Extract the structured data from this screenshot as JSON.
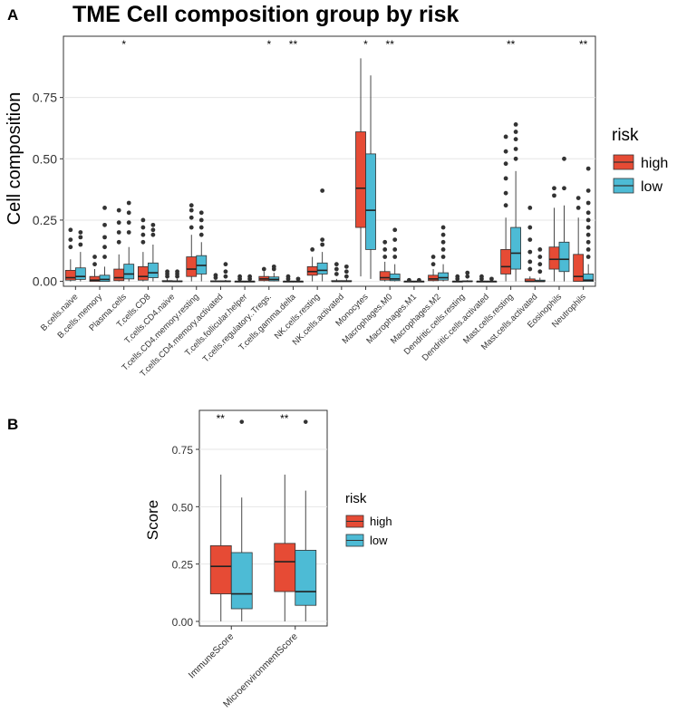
{
  "chart_data": [
    {
      "panel": "A",
      "type": "box",
      "title": "TME Cell composition group by risk",
      "xlabel": "",
      "ylabel": "Cell composition",
      "ylim": [
        -0.02,
        1.0
      ],
      "yticks": [
        0.0,
        0.25,
        0.5,
        0.75
      ],
      "ytick_labels": [
        "0.00",
        "0.25",
        "0.50",
        "0.75"
      ],
      "legend": {
        "title": "risk",
        "position": "right",
        "entries": [
          {
            "label": "high",
            "color": "#E64B35"
          },
          {
            "label": "low",
            "color": "#4DBBD5"
          }
        ]
      },
      "groups": [
        {
          "name": "B.cells.naive",
          "sig": "",
          "high": {
            "whislo": 0,
            "q1": 0.005,
            "med": 0.015,
            "q3": 0.045,
            "whishi": 0.09,
            "fliers": [
              0.14,
              0.17,
              0.21
            ]
          },
          "low": {
            "whislo": 0,
            "q1": 0.008,
            "med": 0.02,
            "q3": 0.055,
            "whishi": 0.12,
            "fliers": [
              0.15,
              0.18,
              0.2
            ]
          }
        },
        {
          "name": "B.cells.memory",
          "sig": "",
          "high": {
            "whislo": 0,
            "q1": 0.0,
            "med": 0.005,
            "q3": 0.02,
            "whishi": 0.05,
            "fliers": [
              0.07,
              0.1
            ]
          },
          "low": {
            "whislo": 0,
            "q1": 0.0,
            "med": 0.008,
            "q3": 0.025,
            "whishi": 0.06,
            "fliers": [
              0.1,
              0.14,
              0.18,
              0.23,
              0.3
            ]
          }
        },
        {
          "name": "Plasma.cells",
          "sig": "*",
          "high": {
            "whislo": 0,
            "q1": 0.003,
            "med": 0.015,
            "q3": 0.05,
            "whishi": 0.11,
            "fliers": [
              0.16,
              0.2,
              0.24,
              0.29
            ]
          },
          "low": {
            "whislo": 0,
            "q1": 0.01,
            "med": 0.03,
            "q3": 0.07,
            "whishi": 0.14,
            "fliers": [
              0.2,
              0.24,
              0.28,
              0.32
            ]
          }
        },
        {
          "name": "T.cells.CD8",
          "sig": "",
          "high": {
            "whislo": 0,
            "q1": 0.005,
            "med": 0.02,
            "q3": 0.06,
            "whishi": 0.12,
            "fliers": [
              0.16,
              0.19,
              0.22,
              0.25
            ]
          },
          "low": {
            "whislo": 0,
            "q1": 0.015,
            "med": 0.035,
            "q3": 0.075,
            "whishi": 0.15,
            "fliers": [
              0.19,
              0.21,
              0.23
            ]
          }
        },
        {
          "name": "T.cells.CD4.naive",
          "sig": "",
          "high": {
            "whislo": 0,
            "q1": 0.0,
            "med": 0.0,
            "q3": 0.003,
            "whishi": 0.01,
            "fliers": [
              0.02,
              0.03,
              0.04
            ]
          },
          "low": {
            "whislo": 0,
            "q1": 0.0,
            "med": 0.0,
            "q3": 0.002,
            "whishi": 0.01,
            "fliers": [
              0.02,
              0.03,
              0.04
            ]
          }
        },
        {
          "name": "T.cells.CD4.memory.resting",
          "sig": "",
          "high": {
            "whislo": 0,
            "q1": 0.02,
            "med": 0.05,
            "q3": 0.1,
            "whishi": 0.19,
            "fliers": [
              0.22,
              0.26,
              0.29,
              0.31
            ]
          },
          "low": {
            "whislo": 0,
            "q1": 0.03,
            "med": 0.065,
            "q3": 0.105,
            "whishi": 0.16,
            "fliers": [
              0.19,
              0.22,
              0.25,
              0.28
            ]
          }
        },
        {
          "name": "T.cells.CD4.memory.activated",
          "sig": "",
          "high": {
            "whislo": 0,
            "q1": 0.0,
            "med": 0.0,
            "q3": 0.002,
            "whishi": 0.006,
            "fliers": [
              0.015,
              0.025
            ]
          },
          "low": {
            "whislo": 0,
            "q1": 0.0,
            "med": 0.0,
            "q3": 0.002,
            "whishi": 0.006,
            "fliers": [
              0.02,
              0.04,
              0.07
            ]
          }
        },
        {
          "name": "T.cells.follicular.helper",
          "sig": "",
          "high": {
            "whislo": 0,
            "q1": 0.0,
            "med": 0.0,
            "q3": 0.0,
            "whishi": 0.003,
            "fliers": [
              0.01,
              0.02
            ]
          },
          "low": {
            "whislo": 0,
            "q1": 0.0,
            "med": 0.0,
            "q3": 0.0,
            "whishi": 0.003,
            "fliers": [
              0.01,
              0.02
            ]
          }
        },
        {
          "name": "T.cells.regulatory..Tregs.",
          "sig": "*",
          "high": {
            "whislo": 0,
            "q1": 0.003,
            "med": 0.01,
            "q3": 0.02,
            "whishi": 0.04,
            "fliers": [
              0.05
            ]
          },
          "low": {
            "whislo": 0,
            "q1": 0.002,
            "med": 0.008,
            "q3": 0.018,
            "whishi": 0.035,
            "fliers": [
              0.05,
              0.06
            ]
          }
        },
        {
          "name": "T.cells.gamma.delta",
          "sig": "**",
          "high": {
            "whislo": 0,
            "q1": 0.0,
            "med": 0.0,
            "q3": 0.0,
            "whishi": 0.003,
            "fliers": [
              0.01,
              0.02
            ]
          },
          "low": {
            "whislo": 0,
            "q1": 0.0,
            "med": 0.0,
            "q3": 0.0,
            "whishi": 0.003,
            "fliers": [
              0.01
            ]
          }
        },
        {
          "name": "NK.cells.resting",
          "sig": "",
          "high": {
            "whislo": 0,
            "q1": 0.025,
            "med": 0.04,
            "q3": 0.06,
            "whishi": 0.1,
            "fliers": [
              0.13
            ]
          },
          "low": {
            "whislo": 0,
            "q1": 0.03,
            "med": 0.045,
            "q3": 0.075,
            "whishi": 0.12,
            "fliers": [
              0.15,
              0.17,
              0.37
            ]
          }
        },
        {
          "name": "NK.cells.activated",
          "sig": "",
          "high": {
            "whislo": 0,
            "q1": 0.0,
            "med": 0.0,
            "q3": 0.003,
            "whishi": 0.01,
            "fliers": [
              0.03,
              0.05,
              0.07
            ]
          },
          "low": {
            "whislo": 0,
            "q1": 0.0,
            "med": 0.0,
            "q3": 0.003,
            "whishi": 0.01,
            "fliers": [
              0.02,
              0.04,
              0.06
            ]
          }
        },
        {
          "name": "Monocytes",
          "sig": "*",
          "high": {
            "whislo": 0.02,
            "q1": 0.22,
            "med": 0.38,
            "q3": 0.61,
            "whishi": 0.91,
            "fliers": []
          },
          "low": {
            "whislo": 0.01,
            "q1": 0.13,
            "med": 0.29,
            "q3": 0.52,
            "whishi": 0.84,
            "fliers": []
          }
        },
        {
          "name": "Macrophages.M0",
          "sig": "**",
          "high": {
            "whislo": 0,
            "q1": 0.005,
            "med": 0.015,
            "q3": 0.04,
            "whishi": 0.08,
            "fliers": [
              0.1,
              0.13,
              0.16
            ]
          },
          "low": {
            "whislo": 0,
            "q1": 0.003,
            "med": 0.01,
            "q3": 0.03,
            "whishi": 0.07,
            "fliers": [
              0.1,
              0.13,
              0.17,
              0.21
            ]
          }
        },
        {
          "name": "Macrophages.M1",
          "sig": "",
          "high": {
            "whislo": 0,
            "q1": 0.0,
            "med": 0.0,
            "q3": 0.0,
            "whishi": 0.003,
            "fliers": [
              0.005
            ]
          },
          "low": {
            "whislo": 0,
            "q1": 0.0,
            "med": 0.0,
            "q3": 0.0,
            "whishi": 0.003,
            "fliers": [
              0.005
            ]
          }
        },
        {
          "name": "Macrophages.M2",
          "sig": "",
          "high": {
            "whislo": 0,
            "q1": 0.003,
            "med": 0.01,
            "q3": 0.025,
            "whishi": 0.05,
            "fliers": [
              0.07,
              0.1
            ]
          },
          "low": {
            "whislo": 0,
            "q1": 0.005,
            "med": 0.015,
            "q3": 0.035,
            "whishi": 0.07,
            "fliers": [
              0.1,
              0.13,
              0.16,
              0.19,
              0.22
            ]
          }
        },
        {
          "name": "Dendritic.cells.resting",
          "sig": "",
          "high": {
            "whislo": 0,
            "q1": 0.0,
            "med": 0.0,
            "q3": 0.0,
            "whishi": 0.003,
            "fliers": [
              0.01,
              0.02
            ]
          },
          "low": {
            "whislo": 0,
            "q1": 0.0,
            "med": 0.0,
            "q3": 0.002,
            "whishi": 0.005,
            "fliers": [
              0.02,
              0.035
            ]
          }
        },
        {
          "name": "Dendritic.cells.activated",
          "sig": "",
          "high": {
            "whislo": 0,
            "q1": 0.0,
            "med": 0.0,
            "q3": 0.0,
            "whishi": 0.003,
            "fliers": [
              0.01,
              0.02
            ]
          },
          "low": {
            "whislo": 0,
            "q1": 0.0,
            "med": 0.0,
            "q3": 0.0,
            "whishi": 0.003,
            "fliers": [
              0.01
            ]
          }
        },
        {
          "name": "Mast.cells.resting",
          "sig": "**",
          "high": {
            "whislo": 0,
            "q1": 0.03,
            "med": 0.06,
            "q3": 0.13,
            "whishi": 0.26,
            "fliers": [
              0.31,
              0.36,
              0.42,
              0.48,
              0.53,
              0.59
            ]
          },
          "low": {
            "whislo": 0,
            "q1": 0.05,
            "med": 0.115,
            "q3": 0.22,
            "whishi": 0.45,
            "fliers": [
              0.5,
              0.54,
              0.58,
              0.61,
              0.64
            ]
          }
        },
        {
          "name": "Mast.cells.activated",
          "sig": "",
          "high": {
            "whislo": 0,
            "q1": 0.0,
            "med": 0.0,
            "q3": 0.01,
            "whishi": 0.02,
            "fliers": [
              0.05,
              0.08,
              0.12,
              0.17,
              0.22,
              0.3
            ]
          },
          "low": {
            "whislo": 0,
            "q1": 0.0,
            "med": 0.0,
            "q3": 0.005,
            "whishi": 0.015,
            "fliers": [
              0.04,
              0.07,
              0.1,
              0.13
            ]
          }
        },
        {
          "name": "Eosinophils",
          "sig": "",
          "high": {
            "whislo": 0,
            "q1": 0.05,
            "med": 0.09,
            "q3": 0.14,
            "whishi": 0.3,
            "fliers": [
              0.35,
              0.38
            ]
          },
          "low": {
            "whislo": 0,
            "q1": 0.04,
            "med": 0.09,
            "q3": 0.16,
            "whishi": 0.31,
            "fliers": [
              0.38,
              0.5
            ]
          }
        },
        {
          "name": "Neutrophils",
          "sig": "**",
          "high": {
            "whislo": 0,
            "q1": 0.0,
            "med": 0.02,
            "q3": 0.11,
            "whishi": 0.26,
            "fliers": [
              0.3,
              0.34
            ]
          },
          "low": {
            "whislo": 0,
            "q1": 0.0,
            "med": 0.005,
            "q3": 0.03,
            "whishi": 0.07,
            "fliers": [
              0.1,
              0.13,
              0.16,
              0.19,
              0.22,
              0.25,
              0.28,
              0.32,
              0.37,
              0.46
            ]
          }
        }
      ]
    },
    {
      "panel": "B",
      "type": "box",
      "title": "",
      "xlabel": "",
      "ylabel": "Score",
      "ylim": [
        -0.02,
        0.92
      ],
      "yticks": [
        0.0,
        0.25,
        0.5,
        0.75
      ],
      "ytick_labels": [
        "0.00",
        "0.25",
        "0.50",
        "0.75"
      ],
      "legend": {
        "title": "risk",
        "position": "right",
        "entries": [
          {
            "label": "high",
            "color": "#E64B35"
          },
          {
            "label": "low",
            "color": "#4DBBD5"
          }
        ]
      },
      "groups": [
        {
          "name": "ImmuneScore",
          "sig": "**",
          "high": {
            "whislo": 0.0,
            "q1": 0.12,
            "med": 0.24,
            "q3": 0.33,
            "whishi": 0.64,
            "fliers": []
          },
          "low": {
            "whislo": 0.0,
            "q1": 0.055,
            "med": 0.12,
            "q3": 0.3,
            "whishi": 0.54,
            "fliers": [
              0.87
            ]
          }
        },
        {
          "name": "MicroenvironmentScore",
          "sig": "**",
          "high": {
            "whislo": 0.0,
            "q1": 0.13,
            "med": 0.26,
            "q3": 0.34,
            "whishi": 0.64,
            "fliers": []
          },
          "low": {
            "whislo": 0.0,
            "q1": 0.07,
            "med": 0.13,
            "q3": 0.31,
            "whishi": 0.57,
            "fliers": [
              0.87
            ]
          }
        }
      ]
    }
  ],
  "panels": {
    "a_label": "A",
    "b_label": "B"
  }
}
